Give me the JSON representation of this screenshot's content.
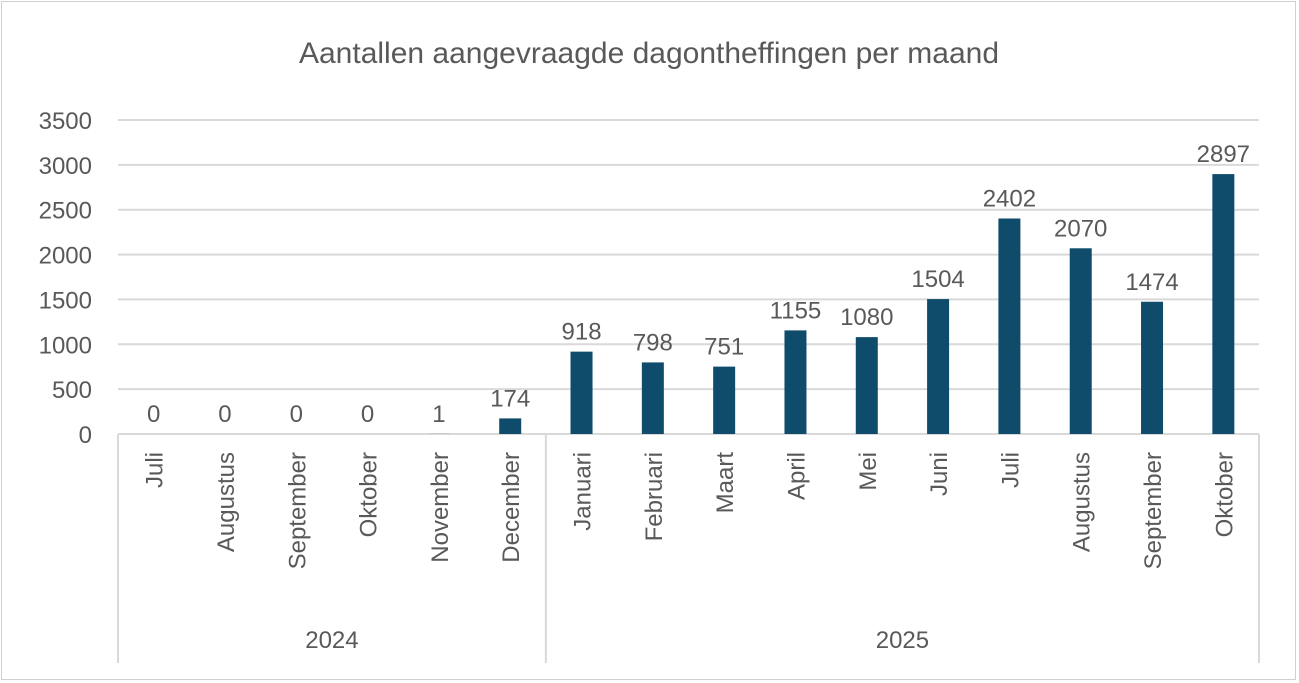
{
  "chart_data": {
    "type": "bar",
    "title": "Aantallen aangevraagde dagontheffingen per maand",
    "xlabel": "",
    "ylabel": "",
    "ylim": [
      0,
      3500
    ],
    "yticks": [
      0,
      500,
      1000,
      1500,
      2000,
      2500,
      3000,
      3500
    ],
    "grid": true,
    "legend": "none",
    "bar_color": "#0F4C6B",
    "groups": [
      {
        "label": "2024",
        "categories": [
          "Juli",
          "Augustus",
          "September",
          "Oktober",
          "November",
          "December"
        ],
        "values": [
          0,
          0,
          0,
          0,
          1,
          174
        ]
      },
      {
        "label": "2025",
        "categories": [
          "Januari",
          "Februari",
          "Maart",
          "April",
          "Mei",
          "Juni",
          "Juli",
          "Augustus",
          "September",
          "Oktober"
        ],
        "values": [
          918,
          798,
          751,
          1155,
          1080,
          1504,
          2402,
          2070,
          1474,
          2897
        ]
      }
    ]
  }
}
